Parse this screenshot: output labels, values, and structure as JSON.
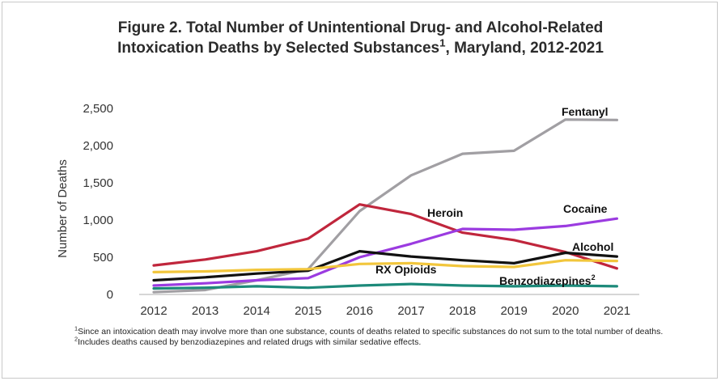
{
  "figure": {
    "title_line1": "Figure 2. Total Number of Unintentional Drug- and Alcohol-Related",
    "title_line2_pre": "Intoxication Deaths by Selected Substances",
    "title_line2_sup": "1",
    "title_line2_post": ", Maryland, 2012-2021"
  },
  "footnotes": {
    "note1_sup": "1",
    "note1_text": "Since an intoxication death may involve more than one substance, counts of deaths related to specific substances do not sum to the total number of deaths.",
    "note2_sup": "2",
    "note2_text": "Includes deaths caused by benzodiazepines and related drugs with similar sedative effects."
  },
  "chart_data": {
    "type": "line",
    "x": [
      "2012",
      "2013",
      "2014",
      "2015",
      "2016",
      "2017",
      "2018",
      "2019",
      "2020",
      "2021"
    ],
    "ylabel": "Number of Deaths",
    "ylim": [
      0,
      2500
    ],
    "yticks": [
      0,
      500,
      1000,
      1500,
      2000,
      2500
    ],
    "ytick_labels": [
      "0",
      "500",
      "1,000",
      "1,500",
      "2,000",
      "2,500"
    ],
    "grid": false,
    "series": [
      {
        "name": "Fentanyl",
        "color": "#a19fa3",
        "values": [
          30,
          60,
          190,
          340,
          1120,
          1600,
          1890,
          1930,
          2350,
          2345
        ]
      },
      {
        "name": "Heroin",
        "color": "#c0263c",
        "values": [
          390,
          470,
          580,
          750,
          1210,
          1080,
          830,
          730,
          570,
          350
        ]
      },
      {
        "name": "Cocaine",
        "color": "#9b3be0",
        "values": [
          120,
          150,
          190,
          220,
          500,
          680,
          880,
          870,
          920,
          1020
        ]
      },
      {
        "name": "Alcohol",
        "color": "#111111",
        "values": [
          190,
          230,
          280,
          320,
          580,
          510,
          460,
          420,
          560,
          510
        ]
      },
      {
        "name": "RX Opioids",
        "color": "#f2c63c",
        "values": [
          300,
          310,
          330,
          340,
          410,
          420,
          380,
          370,
          460,
          450
        ]
      },
      {
        "name": "Benzodiazepines",
        "name_sup": "2",
        "color": "#1d8a7a",
        "values": [
          80,
          90,
          110,
          90,
          120,
          140,
          120,
          110,
          120,
          110
        ]
      }
    ]
  }
}
